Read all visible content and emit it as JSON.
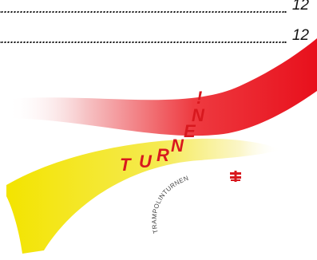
{
  "toc": {
    "entries": [
      {
        "page": "12"
      },
      {
        "page": "12"
      }
    ]
  },
  "logo": {
    "title_letters": [
      "T",
      "U",
      "R",
      "N",
      "E",
      "N",
      "!"
    ],
    "subtitle": "TRAMPOLINTURNEN",
    "colors": {
      "red": "#e8101c",
      "yellow": "#f3e400",
      "title_red": "#d8181e",
      "text_grey": "#444444"
    }
  }
}
